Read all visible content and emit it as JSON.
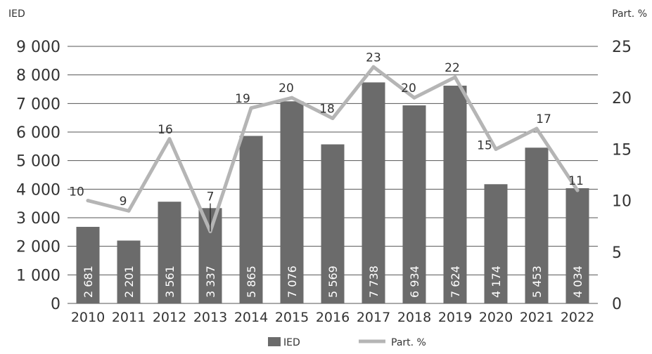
{
  "chart_data": {
    "type": "bar",
    "categories": [
      "2010",
      "2011",
      "2012",
      "2013",
      "2014",
      "2015",
      "2016",
      "2017",
      "2018",
      "2019",
      "2020",
      "2021",
      "2022"
    ],
    "series": [
      {
        "name": "IED",
        "type": "bar",
        "axis": "left",
        "values": [
          2681,
          2201,
          3561,
          3337,
          5865,
          7076,
          5569,
          7738,
          6934,
          7624,
          4174,
          5453,
          4034
        ],
        "labels": [
          "2 681",
          "2 201",
          "3 561",
          "3 337",
          "5 865",
          "7 076",
          "5 569",
          "7 738",
          "6 934",
          "7 624",
          "4 174",
          "5 453",
          "4 034"
        ]
      },
      {
        "name": "Part. %",
        "type": "line",
        "axis": "right",
        "values": [
          10,
          9,
          16,
          7,
          19,
          20,
          18,
          23,
          20,
          22,
          15,
          17,
          11
        ]
      }
    ],
    "left_axis": {
      "label": "IED",
      "ylim": [
        0,
        9000
      ],
      "ticks": [
        0,
        1000,
        2000,
        3000,
        4000,
        5000,
        6000,
        7000,
        8000,
        9000
      ],
      "tick_labels": [
        "0",
        "1 000",
        "2 000",
        "3 000",
        "4 000",
        "5 000",
        "6 000",
        "7 000",
        "8 000",
        "9 000"
      ]
    },
    "right_axis": {
      "label": "Part. %",
      "ylim": [
        0,
        25
      ],
      "ticks": [
        0,
        5,
        10,
        15,
        20,
        25
      ],
      "tick_labels": [
        "0",
        "5",
        "10",
        "15",
        "20",
        "25"
      ]
    },
    "grid": true,
    "legend_position": "bottom-center",
    "colors": {
      "bar": "#6b6b6b",
      "line": "#b5b5b5",
      "grid": "#555555",
      "text": "#333333"
    }
  }
}
